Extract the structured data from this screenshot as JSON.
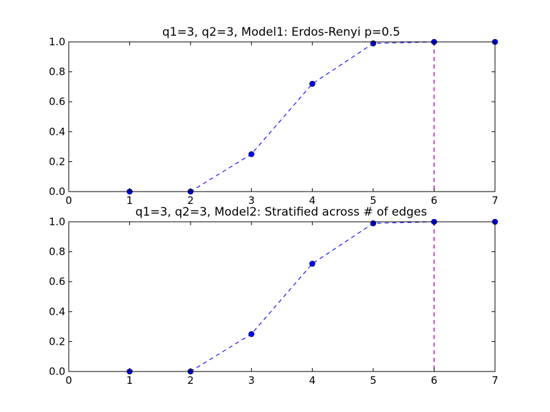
{
  "chart_data": [
    {
      "type": "line",
      "title": "q1=3, q2=3, Model1: Erdos-Renyi p=0.5",
      "xlabel": "",
      "ylabel": "",
      "xlim": [
        0,
        7
      ],
      "ylim": [
        0.0,
        1.0
      ],
      "xticks": [
        "0",
        "1",
        "2",
        "3",
        "4",
        "5",
        "6",
        "7"
      ],
      "yticks": [
        "0.0",
        "0.2",
        "0.4",
        "0.6",
        "0.8",
        "1.0"
      ],
      "grid": false,
      "series": [
        {
          "x": [
            1,
            2,
            3,
            4,
            5,
            6,
            7
          ],
          "values": [
            0.0,
            0.0,
            0.25,
            0.72,
            0.99,
            1.0,
            1.0
          ],
          "color": "#0000ff",
          "line_style": "dashed",
          "marker": "circle"
        }
      ],
      "vline": {
        "x": 6,
        "color": "#bf00bf",
        "line_style": "dashed"
      }
    },
    {
      "type": "line",
      "title": "q1=3, q2=3, Model2: Stratified across # of edges",
      "xlabel": "",
      "ylabel": "",
      "xlim": [
        0,
        7
      ],
      "ylim": [
        0.0,
        1.0
      ],
      "xticks": [
        "0",
        "1",
        "2",
        "3",
        "4",
        "5",
        "6",
        "7"
      ],
      "yticks": [
        "0.0",
        "0.2",
        "0.4",
        "0.6",
        "0.8",
        "1.0"
      ],
      "grid": false,
      "series": [
        {
          "x": [
            1,
            2,
            3,
            4,
            5,
            6,
            7
          ],
          "values": [
            0.0,
            0.0,
            0.25,
            0.72,
            0.99,
            1.0,
            1.0
          ],
          "color": "#0000ff",
          "line_style": "dashed",
          "marker": "circle"
        }
      ],
      "vline": {
        "x": 6,
        "color": "#bf00bf",
        "line_style": "dashed"
      }
    }
  ]
}
